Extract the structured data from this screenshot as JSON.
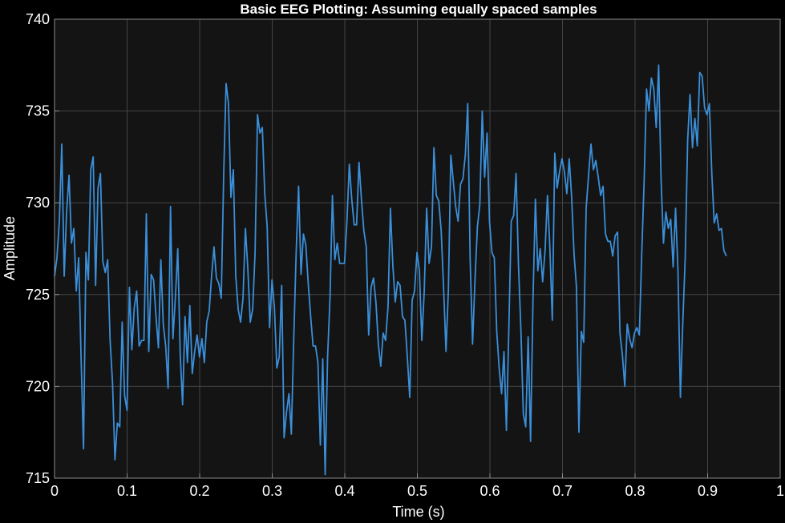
{
  "figure": {
    "background_color": "#000000",
    "axes_background_color": "#141414",
    "grid_color": "#444444",
    "axis_color": "#8c8c8c",
    "text_color": "#ffffff",
    "line_color": "#3b8fd9"
  },
  "chart_data": {
    "type": "line",
    "title": "Basic EEG Plotting: Assuming equally spaced samples",
    "xlabel": "Time (s)",
    "ylabel": "Amplitude",
    "xlim": [
      0,
      1
    ],
    "ylim": [
      715,
      740
    ],
    "grid": true,
    "xticks": [
      0,
      0.1,
      0.2,
      0.3,
      0.4,
      0.5,
      0.6,
      0.7,
      0.8,
      0.9,
      1
    ],
    "xtick_labels": [
      "0",
      "0.1",
      "0.2",
      "0.3",
      "0.4",
      "0.5",
      "0.6",
      "0.7",
      "0.8",
      "0.9",
      "1"
    ],
    "yticks": [
      715,
      720,
      725,
      730,
      735,
      740
    ],
    "ytick_labels": [
      "715",
      "720",
      "725",
      "730",
      "735",
      "740"
    ],
    "series": [
      {
        "x_step": 0.00333,
        "values": [
          726,
          727,
          729,
          733.2,
          726,
          729.5,
          731.5,
          727.8,
          728.6,
          725.2,
          727,
          721.5,
          716.6,
          727.3,
          725.8,
          731.8,
          732.5,
          725.5,
          730.8,
          731.6,
          726.8,
          726.2,
          726.9,
          722.5,
          720.2,
          716,
          718,
          717.8,
          723.5,
          719.5,
          718.7,
          725.4,
          722,
          724.3,
          725.2,
          722.2,
          722.5,
          722.5,
          729.4,
          721.9,
          726.1,
          725.8,
          723.8,
          722.1,
          726.9,
          723.4,
          722.2,
          719.9,
          729.8,
          722.6,
          724.8,
          727.5,
          721.8,
          719,
          723.8,
          721.3,
          724.4,
          720.7,
          721.9,
          722.8,
          721.6,
          722.6,
          721.3,
          723.5,
          724.1,
          726,
          727.6,
          725.9,
          725.6,
          724.8,
          731.5,
          736.5,
          735.4,
          730.3,
          731.8,
          726,
          724.2,
          723.5,
          724.8,
          728.6,
          726.4,
          723.5,
          724.2,
          727.3,
          734.8,
          733.8,
          734.1,
          730.5,
          728.7,
          723.2,
          725.8,
          724.3,
          721,
          721.6,
          725.5,
          717.2,
          718.6,
          719.6,
          717.4,
          722.6,
          727.3,
          730.9,
          726.1,
          728.3,
          727.7,
          725.6,
          723.8,
          722.2,
          722.2,
          721.3,
          716.8,
          721.5,
          715.2,
          721.6,
          724.8,
          730.4,
          726.9,
          727.8,
          726.7,
          726.7,
          726.7,
          729,
          732.1,
          730.2,
          728.8,
          728.8,
          732.2,
          730.2,
          728.5,
          727.6,
          722.8,
          725.4,
          725.9,
          724.6,
          722.3,
          721.1,
          722.9,
          722.5,
          724.3,
          729.7,
          726.6,
          724.6,
          725.7,
          725.5,
          723.8,
          723.6,
          721.6,
          719.4,
          724.7,
          725.2,
          727.3,
          726.3,
          722.5,
          725.2,
          729.7,
          726.7,
          727.6,
          733,
          730.4,
          730.1,
          728.5,
          725.4,
          721.9,
          725.3,
          732.6,
          731.2,
          729.8,
          729,
          731,
          731.3,
          732.6,
          735.4,
          726.9,
          722.3,
          725.8,
          728.7,
          729.9,
          735,
          731.4,
          733.8,
          729,
          727.3,
          727,
          723,
          721,
          719.6,
          721.9,
          717.6,
          723.1,
          729,
          729.3,
          731.6,
          726.6,
          723.1,
          718.5,
          717.8,
          722.7,
          717,
          724.7,
          730.2,
          726.3,
          727.5,
          725.7,
          727.4,
          730.4,
          727.5,
          723.6,
          732.7,
          730.8,
          731.7,
          732.4,
          731.7,
          730.5,
          732.4,
          730.3,
          727.2,
          725.4,
          717.5,
          723,
          722.4,
          729.7,
          731.5,
          733.2,
          731.8,
          732.3,
          731.4,
          730.4,
          730.9,
          728.3,
          727.9,
          727.9,
          727.1,
          728.2,
          728.4,
          722.9,
          721.7,
          720,
          723.4,
          722.6,
          722.1,
          722.9,
          723.2,
          722.8,
          727.2,
          731.2,
          736.2,
          735,
          736.8,
          736.2,
          734.1,
          737.5,
          731.3,
          727.8,
          729.5,
          728.6,
          729.1,
          726.5,
          729.7,
          726.3,
          719.4,
          723.5,
          727,
          733.4,
          735.9,
          733,
          734.6,
          733.1,
          737.1,
          736.9,
          735.2,
          734.8,
          735.4,
          731.6,
          728.9,
          729.4,
          728.5,
          728.6,
          727.4,
          727.1
        ]
      }
    ]
  }
}
